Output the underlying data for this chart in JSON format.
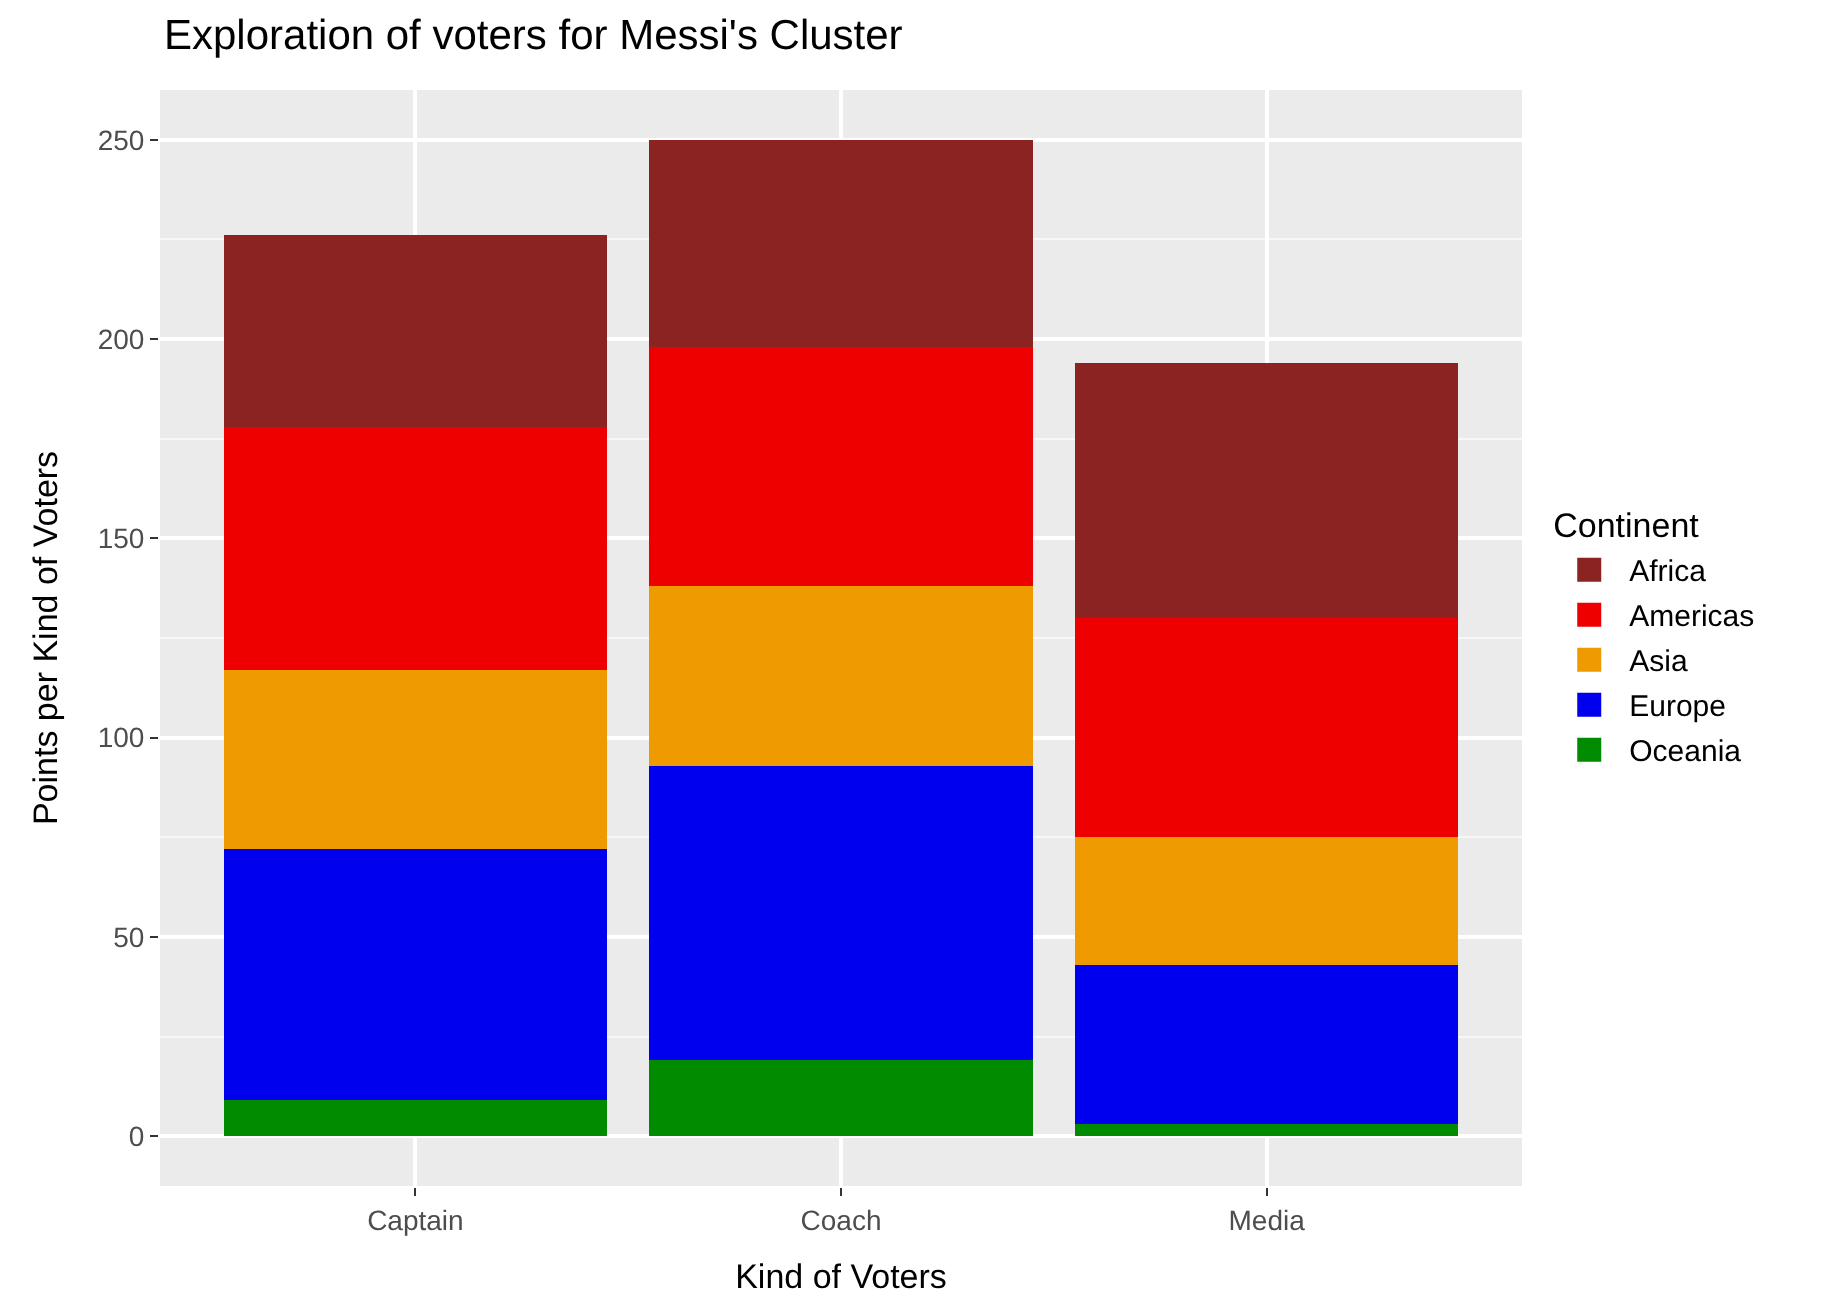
{
  "chart_data": {
    "type": "bar",
    "title": "Exploration of voters for Messi's Cluster",
    "xlabel": "Kind of Voters",
    "ylabel": "Points per Kind of Voters",
    "legend_title": "Continent",
    "categories": [
      "Captain",
      "Coach",
      "Media"
    ],
    "stacked": true,
    "series": [
      {
        "name": "Oceania",
        "color": "#008b00",
        "values": [
          9,
          19,
          3
        ]
      },
      {
        "name": "Europe",
        "color": "#0000ee",
        "values": [
          63,
          74,
          40
        ]
      },
      {
        "name": "Asia",
        "color": "#ee9a00",
        "values": [
          45,
          45,
          32
        ]
      },
      {
        "name": "Americas",
        "color": "#ee0000",
        "values": [
          61,
          60,
          55
        ]
      },
      {
        "name": "Africa",
        "color": "#8b2323",
        "values": [
          48,
          52,
          64
        ]
      }
    ],
    "ylim": [
      -12.5,
      262.5
    ],
    "yticks": [
      0,
      50,
      100,
      150,
      200,
      250
    ],
    "grid": true,
    "legend": "right"
  }
}
